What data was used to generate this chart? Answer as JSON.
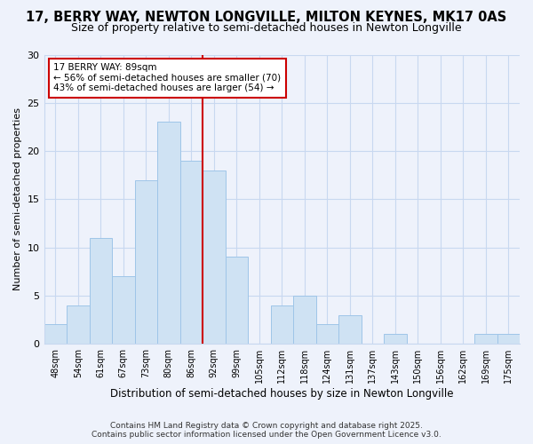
{
  "title": "17, BERRY WAY, NEWTON LONGVILLE, MILTON KEYNES, MK17 0AS",
  "subtitle": "Size of property relative to semi-detached houses in Newton Longville",
  "xlabel": "Distribution of semi-detached houses by size in Newton Longville",
  "ylabel": "Number of semi-detached properties",
  "bar_labels": [
    "48sqm",
    "54sqm",
    "61sqm",
    "67sqm",
    "73sqm",
    "80sqm",
    "86sqm",
    "92sqm",
    "99sqm",
    "105sqm",
    "112sqm",
    "118sqm",
    "124sqm",
    "131sqm",
    "137sqm",
    "143sqm",
    "150sqm",
    "156sqm",
    "162sqm",
    "169sqm",
    "175sqm"
  ],
  "bar_values": [
    2,
    4,
    11,
    7,
    17,
    23,
    19,
    18,
    9,
    0,
    4,
    5,
    2,
    3,
    0,
    1,
    0,
    0,
    0,
    1,
    1
  ],
  "bar_color": "#cfe2f3",
  "bar_edge_color": "#9fc5e8",
  "vline_x_index": 7,
  "vline_color": "#cc0000",
  "annotation_title": "17 BERRY WAY: 89sqm",
  "annotation_line1": "← 56% of semi-detached houses are smaller (70)",
  "annotation_line2": "43% of semi-detached houses are larger (54) →",
  "annotation_box_color": "white",
  "annotation_box_edge": "#cc0000",
  "ylim": [
    0,
    30
  ],
  "yticks": [
    0,
    5,
    10,
    15,
    20,
    25,
    30
  ],
  "footnote1": "Contains HM Land Registry data © Crown copyright and database right 2025.",
  "footnote2": "Contains public sector information licensed under the Open Government Licence v3.0.",
  "bg_color": "#eef2fb",
  "grid_color": "#c8d8f0",
  "title_fontsize": 10.5,
  "subtitle_fontsize": 9,
  "xlabel_fontsize": 8.5,
  "ylabel_fontsize": 8,
  "tick_fontsize": 7,
  "footnote_fontsize": 6.5
}
